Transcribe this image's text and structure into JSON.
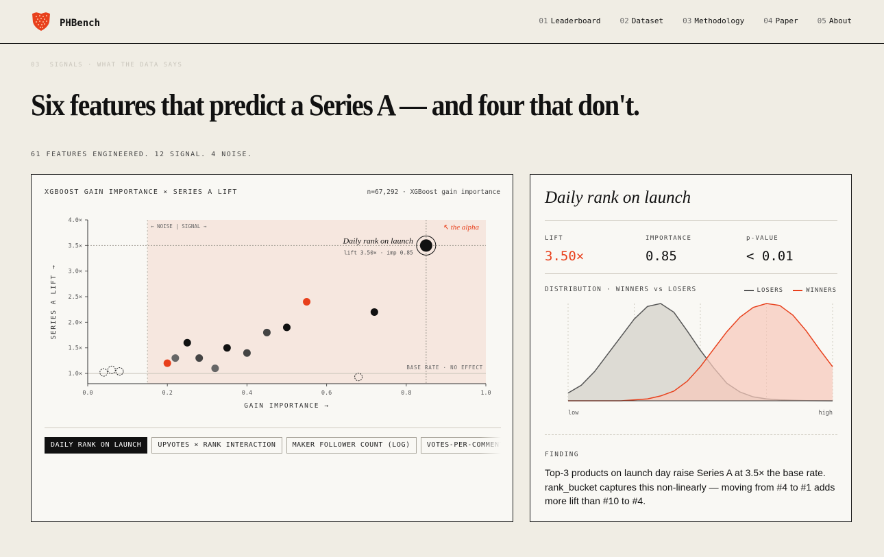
{
  "header": {
    "brand": "PHBench",
    "logo_icon": "orange-shield-logo",
    "nav": [
      {
        "num": "01",
        "label": "Leaderboard"
      },
      {
        "num": "02",
        "label": "Dataset"
      },
      {
        "num": "03",
        "label": "Methodology"
      },
      {
        "num": "04",
        "label": "Paper"
      },
      {
        "num": "05",
        "label": "About"
      }
    ]
  },
  "section": {
    "eyebrow": "03  SIGNALS · WHAT THE DATA SAYS",
    "headline": "Six features that predict a Series A — and four that don't.",
    "subhead": "61 FEATURES ENGINEERED. 12 SIGNAL. 4 NOISE."
  },
  "colors": {
    "accent": "#e8401c",
    "ink": "#111111",
    "signal_zone": "#f6e7df",
    "losers": "#555555",
    "losers_fill": "#dddbd4",
    "winners": "#e8401c",
    "winners_fill": "#f6c9bb"
  },
  "chart_panel": {
    "title": "XGBOOST GAIN IMPORTANCE × SERIES A LIFT",
    "meta": "n=67,292 · XGBoost gain importance",
    "chips": [
      {
        "label": "DAILY RANK ON LAUNCH",
        "active": true
      },
      {
        "label": "UPVOTES × RANK INTERACTION",
        "active": false
      },
      {
        "label": "MAKER FOLLOWER COUNT (LOG)",
        "active": false
      },
      {
        "label": "VOTES-PER-COMMENT RATIO",
        "active": false
      }
    ]
  },
  "chart_data": {
    "type": "scatter",
    "xlabel": "GAIN IMPORTANCE →",
    "ylabel": "SERIES A LIFT →",
    "xlim": [
      0,
      1.0
    ],
    "ylim": [
      0.8,
      4.0
    ],
    "xticks": [
      "0.0",
      "0.2",
      "0.4",
      "0.6",
      "0.8",
      "1.0"
    ],
    "xtick_values": [
      0,
      0.2,
      0.4,
      0.6,
      0.8,
      1.0
    ],
    "yticks": [
      "1.0×",
      "1.5×",
      "2.0×",
      "2.5×",
      "3.0×",
      "3.5×",
      "4.0×"
    ],
    "ytick_values": [
      1.0,
      1.5,
      2.0,
      2.5,
      3.0,
      3.5,
      4.0
    ],
    "noise_threshold": 0.15,
    "noise_signal_label": "← NOISE | SIGNAL →",
    "base_rate_label": "BASE RATE · NO EFFECT",
    "alpha_label": "↖ the alpha",
    "highlight": {
      "name": "Daily rank on launch",
      "sub": "lift 3.50× · imp 0.85",
      "x": 0.85,
      "y": 3.5
    },
    "points": [
      {
        "x": 0.85,
        "y": 3.5,
        "kind": "selected"
      },
      {
        "x": 0.72,
        "y": 2.2,
        "kind": "signal"
      },
      {
        "x": 0.55,
        "y": 2.4,
        "kind": "accent"
      },
      {
        "x": 0.5,
        "y": 1.9,
        "kind": "signal"
      },
      {
        "x": 0.45,
        "y": 1.8,
        "kind": "mid"
      },
      {
        "x": 0.35,
        "y": 1.5,
        "kind": "signal"
      },
      {
        "x": 0.4,
        "y": 1.4,
        "kind": "mid"
      },
      {
        "x": 0.25,
        "y": 1.6,
        "kind": "signal"
      },
      {
        "x": 0.28,
        "y": 1.3,
        "kind": "mid"
      },
      {
        "x": 0.22,
        "y": 1.3,
        "kind": "light"
      },
      {
        "x": 0.2,
        "y": 1.2,
        "kind": "accent"
      },
      {
        "x": 0.32,
        "y": 1.1,
        "kind": "light"
      },
      {
        "x": 0.04,
        "y": 1.02,
        "kind": "noise"
      },
      {
        "x": 0.06,
        "y": 1.07,
        "kind": "noise"
      },
      {
        "x": 0.08,
        "y": 1.04,
        "kind": "noise"
      },
      {
        "x": 0.68,
        "y": 0.93,
        "kind": "noise"
      }
    ]
  },
  "detail": {
    "title": "Daily rank on launch",
    "stats": [
      {
        "label": "LIFT",
        "value": "3.50×",
        "accent": true
      },
      {
        "label": "IMPORTANCE",
        "value": "0.85",
        "accent": false
      },
      {
        "label": "p-VALUE",
        "value": "< 0.01",
        "accent": false
      }
    ],
    "dist_label": "DISTRIBUTION · WINNERS vs LOSERS",
    "legend": {
      "losers": "LOSERS",
      "winners": "WINNERS"
    },
    "axis_low": "low",
    "axis_high": "high",
    "finding_label": "FINDING",
    "finding_text": "Top-3 products on launch day raise Series A at 3.5× the base rate. rank_bucket captures this non-linearly — moving from #4 to #1 adds more lift than #10 to #4."
  },
  "distribution_data": {
    "type": "area",
    "x": [
      0,
      0.05,
      0.1,
      0.15,
      0.2,
      0.25,
      0.3,
      0.35,
      0.4,
      0.45,
      0.5,
      0.55,
      0.6,
      0.65,
      0.7,
      0.75,
      0.8,
      0.85,
      0.9,
      0.95,
      1.0
    ],
    "series": [
      {
        "name": "LOSERS",
        "values": [
          0.08,
          0.16,
          0.3,
          0.48,
          0.66,
          0.84,
          0.97,
          1.0,
          0.91,
          0.72,
          0.52,
          0.34,
          0.18,
          0.09,
          0.04,
          0.02,
          0.01,
          0.005,
          0.002,
          0.001,
          0.0
        ]
      },
      {
        "name": "WINNERS",
        "values": [
          0.0,
          0.0,
          0.0,
          0.0,
          0.0,
          0.01,
          0.02,
          0.05,
          0.1,
          0.2,
          0.35,
          0.53,
          0.71,
          0.86,
          0.96,
          1.0,
          0.98,
          0.88,
          0.72,
          0.53,
          0.35
        ]
      }
    ]
  }
}
